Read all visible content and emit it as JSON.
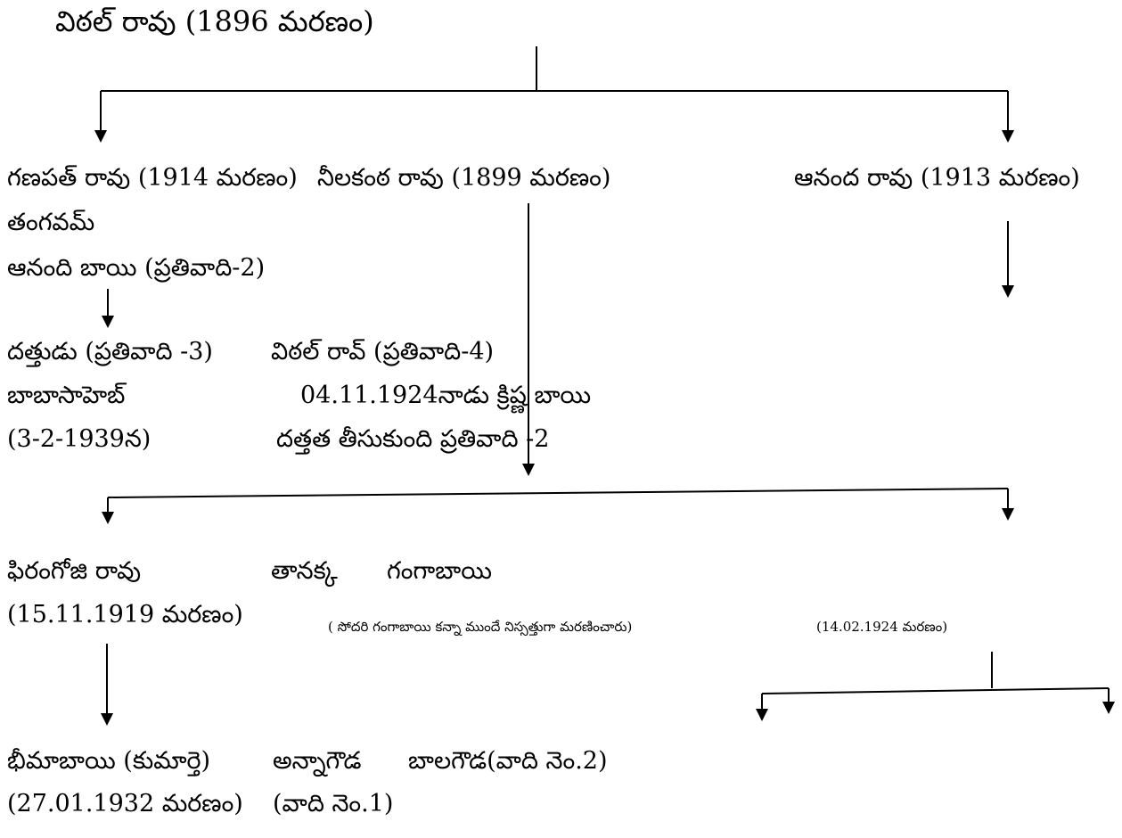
{
  "root": {
    "name": "విఠల్ రావు (1896 మరణం)"
  },
  "gen1": {
    "ganapat": "గణపత్ రావు (1914 మరణం)",
    "neelakanta": "నీలకంఠ రావు (1899 మరణం)",
    "ananda": "ఆనంద రావు (1913 మరణం)",
    "tangavam": "తంగవమ్",
    "anandi_bai": "ఆనంది బాయి (ప్రతివాది-2)"
  },
  "gen2": {
    "dattudu": "దత్తుడు (ప్రతివాది -3)",
    "vithal_rao": "విఠల్ రావ్ (ప్రతివాది-4)",
    "babasaheb": "బాబాసాహెబ్",
    "babasaheb_date": "(3-2-1939న)",
    "adoption_line1": "04.11.1924నాడు క్రిష్ణ బాయి",
    "adoption_line2": "దత్తత తీసుకుంది ప్రతివాది -2"
  },
  "gen3": {
    "firangoji": "ఫిరంగోజి రావు",
    "firangoji_date": "(15.11.1919 మరణం)",
    "tanakka": "తానక్క",
    "gangabai": "గంగాబాయి",
    "tanakka_note": "( సోదరి గంగాబాయి కన్నా ముందే నిస్సత్తుగా మరణించారు)",
    "gangabai_date": "(14.02.1924 మరణం)"
  },
  "gen4": {
    "bheemabai": "భీమాబాయి (కుమార్తె)",
    "bheemabai_date": "(27.01.1932 మరణం)",
    "annagouda": "అన్నాగౌడ",
    "annagouda_role": "(వాది నెం.1)",
    "balagouda": "బాలగౌడ(వాది నెం.2)"
  }
}
